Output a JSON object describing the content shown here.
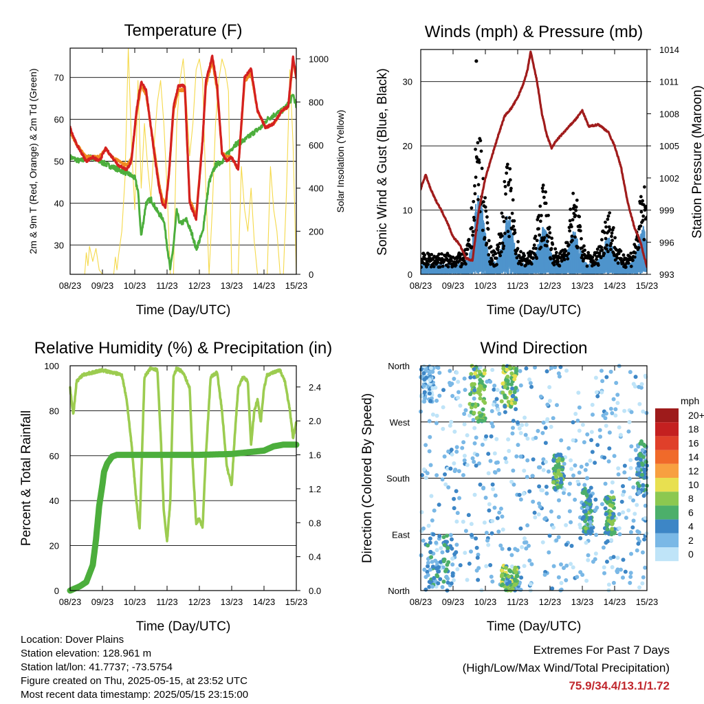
{
  "info": {
    "location": "Location: Dover Plains",
    "elevation": "Station elevation: 128.961 m",
    "latlon": "Station lat/lon: 41.7737; -73.5754",
    "created": "Figure created on Thu, 2025-05-15, at 23:52 UTC",
    "recent": "Most recent data timestamp: 2025/05/15 23:15:00"
  },
  "extremes": {
    "title": "Extremes For Past 7 Days",
    "subtitle": "(High/Low/Max Wind/Total Precipitation)",
    "values": "75.9/34.4/13.1/1.72"
  },
  "colors": {
    "temp2m": "#d42020",
    "temp9m": "#f08a20",
    "dewpoint": "#4cae3c",
    "insolation": "#f5d94a",
    "wind": "#4f94cc",
    "gust": "#000000",
    "pressure": "#a01c1c",
    "rh": "#9ccc50",
    "precip": "#4cae3c"
  },
  "chart_data": [
    {
      "id": "temperature",
      "type": "line",
      "title": "Temperature (F)",
      "xlabel": "Time (Day/UTC)",
      "ylabel": "2m & 9m T (Red, Orange) & 2m Td (Green)",
      "y2label": "Solar Insolation (Yellow)",
      "x_ticks": [
        "08/23",
        "09/23",
        "10/23",
        "11/23",
        "12/23",
        "13/23",
        "14/23",
        "15/23"
      ],
      "y_ticks": [
        30,
        40,
        50,
        60,
        70
      ],
      "y2_ticks": [
        0,
        200,
        400,
        600,
        800,
        1000
      ],
      "xlim": [
        0,
        7
      ],
      "ylim": [
        23,
        77
      ],
      "y2lim": [
        0,
        1050
      ],
      "grid": true,
      "series": [
        {
          "key": "temp2m",
          "x": [
            0,
            0.2,
            0.5,
            0.7,
            0.9,
            1.1,
            1.3,
            1.5,
            1.75,
            1.9,
            2.05,
            2.2,
            2.35,
            2.6,
            2.75,
            2.85,
            2.95,
            3.05,
            3.2,
            3.35,
            3.55,
            3.7,
            3.9,
            4.1,
            4.2,
            4.4,
            4.55,
            4.7,
            4.85,
            5.0,
            5.2,
            5.4,
            5.6,
            5.8,
            6.05,
            6.3,
            6.55,
            6.75,
            6.9,
            7.0
          ],
          "y": [
            58,
            54,
            50,
            51,
            50,
            53,
            51,
            49,
            48,
            50,
            62,
            69,
            67,
            52,
            44,
            40,
            39,
            46,
            63,
            68,
            68,
            40,
            36,
            55,
            69,
            75,
            68,
            52,
            50,
            51,
            48,
            70,
            72,
            62,
            58,
            59,
            62,
            63,
            75,
            70
          ]
        },
        {
          "key": "temp9m",
          "x": [
            0,
            0.2,
            0.5,
            0.7,
            0.9,
            1.1,
            1.3,
            1.5,
            1.75,
            1.9,
            2.05,
            2.2,
            2.35,
            2.6,
            2.75,
            2.85,
            2.95,
            3.05,
            3.2,
            3.35,
            3.55,
            3.7,
            3.9,
            4.1,
            4.2,
            4.4,
            4.55,
            4.7,
            4.85,
            5.0,
            5.2,
            5.4,
            5.6,
            5.8,
            6.05,
            6.3,
            6.55,
            6.75,
            6.9,
            7.0
          ],
          "y": [
            57,
            54,
            51,
            51,
            51,
            53,
            51,
            50,
            49,
            51,
            61,
            68,
            66,
            53,
            45,
            41,
            40,
            46,
            62,
            67,
            67,
            41,
            37,
            55,
            68,
            74,
            67,
            52,
            51,
            51,
            48,
            69,
            71,
            62,
            58,
            59,
            62,
            63,
            74,
            70
          ]
        },
        {
          "key": "dewpoint",
          "x": [
            0,
            0.3,
            0.6,
            0.9,
            1.2,
            1.5,
            1.8,
            2.0,
            2.1,
            2.2,
            2.35,
            2.5,
            2.7,
            2.9,
            3.0,
            3.1,
            3.2,
            3.3,
            3.4,
            3.6,
            3.8,
            3.9,
            4.1,
            4.3,
            4.5,
            4.7,
            4.9,
            5.1,
            5.4,
            5.7,
            5.9,
            6.1,
            6.3,
            6.55,
            6.8,
            6.9,
            7.0
          ],
          "y": [
            51,
            50,
            51,
            50,
            49,
            48,
            47,
            46,
            43,
            32,
            40,
            41,
            38,
            36,
            30,
            24,
            30,
            38,
            35,
            36,
            32,
            29,
            33,
            45,
            49,
            50,
            52,
            54,
            55,
            57,
            58,
            60,
            61,
            62,
            64,
            66,
            63
          ]
        },
        {
          "key": "insolation",
          "x": [
            0,
            0.3,
            0.45,
            0.5,
            0.55,
            0.6,
            0.7,
            0.8,
            0.9,
            1.0,
            1.1,
            1.25,
            1.35,
            1.4,
            1.45,
            1.5,
            1.6,
            1.7,
            1.8,
            1.9,
            2.0,
            2.1,
            2.2,
            2.3,
            2.4,
            2.5,
            2.6,
            2.7,
            2.8,
            2.9,
            3.0,
            3.1,
            3.2,
            3.3,
            3.4,
            3.5,
            3.6,
            3.7,
            3.8,
            3.9,
            4.0,
            4.1,
            4.2,
            4.3,
            4.4,
            4.5,
            4.6,
            4.7,
            4.8,
            4.9,
            5.0,
            5.1,
            5.2,
            5.3,
            5.4,
            5.5,
            5.6,
            5.7,
            5.8,
            5.9,
            6.0,
            6.1,
            6.2,
            6.3,
            6.4,
            6.5,
            6.6,
            6.7,
            6.8,
            6.9,
            7.0
          ],
          "y": [
            0,
            0,
            0,
            100,
            40,
            130,
            60,
            120,
            20,
            0,
            0,
            0,
            0,
            80,
            20,
            90,
            200,
            450,
            1050,
            600,
            300,
            900,
            400,
            700,
            500,
            350,
            600,
            800,
            900,
            700,
            400,
            0,
            0,
            700,
            900,
            1000,
            800,
            550,
            700,
            950,
            1000,
            900,
            400,
            0,
            300,
            700,
            900,
            1000,
            950,
            850,
            0,
            0,
            0,
            500,
            300,
            200,
            400,
            150,
            0,
            0,
            0,
            0,
            500,
            300,
            200,
            0,
            0,
            400,
            950,
            600,
            0
          ]
        }
      ]
    },
    {
      "id": "winds",
      "type": "scatter",
      "title": "Winds (mph) & Pressure (mb)",
      "xlabel": "Time (Day/UTC)",
      "ylabel": "Sonic Wind & Gust (Blue, Black)",
      "y2label": "Station Pressure (Maroon)",
      "x_ticks": [
        "08/23",
        "09/23",
        "10/23",
        "11/23",
        "12/23",
        "13/23",
        "14/23",
        "15/23"
      ],
      "y_ticks": [
        0,
        10,
        20,
        30
      ],
      "y2_ticks": [
        993,
        996,
        999,
        1002,
        1005,
        1008,
        1011,
        1014
      ],
      "xlim": [
        0,
        7
      ],
      "ylim": [
        0,
        35
      ],
      "y2lim": [
        993,
        1014
      ],
      "grid": true,
      "max_gust": 33.2,
      "daily_gust_peaks": [
        {
          "x": 1.8,
          "y": 24
        },
        {
          "x": 2.7,
          "y": 18
        },
        {
          "x": 3.8,
          "y": 15
        },
        {
          "x": 4.75,
          "y": 14
        },
        {
          "x": 5.8,
          "y": 12
        },
        {
          "x": 6.9,
          "y": 15
        }
      ],
      "series": [
        {
          "key": "pressure",
          "x": [
            0,
            0.15,
            0.3,
            0.45,
            0.6,
            0.8,
            1.0,
            1.2,
            1.4,
            1.6,
            1.8,
            2.0,
            2.2,
            2.4,
            2.6,
            2.8,
            3.0,
            3.2,
            3.3,
            3.4,
            3.6,
            3.75,
            3.9,
            4.05,
            4.2,
            4.5,
            4.8,
            5.0,
            5.2,
            5.5,
            5.8,
            6.0,
            6.2,
            6.4,
            6.6,
            6.8,
            7.0
          ],
          "y": [
            1001,
            1002.3,
            1001,
            1000,
            999.2,
            998,
            996.5,
            995.8,
            994.5,
            994.3,
            999,
            1002,
            1004,
            1006,
            1007.8,
            1008.5,
            1009.5,
            1011,
            1012,
            1013.8,
            1011,
            1008,
            1006,
            1004.8,
            1005.5,
            1006.5,
            1007.5,
            1008.3,
            1006.8,
            1007,
            1006.3,
            1005,
            1003,
            999.8,
            997.5,
            996,
            993.7
          ]
        }
      ]
    },
    {
      "id": "humidity",
      "type": "line",
      "title": "Relative Humidity (%) & Precipitation (in)",
      "xlabel": "Time (Day/UTC)",
      "ylabel": "Percent & Total Rainfall",
      "x_ticks": [
        "08/23",
        "09/23",
        "10/23",
        "11/23",
        "12/23",
        "13/23",
        "14/23",
        "15/23"
      ],
      "y_ticks": [
        0,
        20,
        40,
        60,
        80,
        100
      ],
      "y2_ticks": [
        "0.0",
        "0.4",
        "0.8",
        "1.2",
        "1.6",
        "2.0",
        "2.4"
      ],
      "xlim": [
        0,
        7
      ],
      "ylim": [
        0,
        100
      ],
      "y2lim": [
        0,
        2.65
      ],
      "grid": true,
      "series": [
        {
          "key": "rh",
          "x": [
            0,
            0.1,
            0.2,
            0.4,
            0.7,
            1.0,
            1.3,
            1.6,
            1.75,
            1.9,
            2.05,
            2.15,
            2.3,
            2.5,
            2.7,
            2.8,
            2.9,
            3.0,
            3.1,
            3.2,
            3.3,
            3.5,
            3.7,
            3.8,
            3.9,
            4.0,
            4.1,
            4.2,
            4.35,
            4.55,
            4.7,
            4.85,
            5.0,
            5.1,
            5.2,
            5.35,
            5.5,
            5.6,
            5.7,
            5.8,
            5.9,
            6.0,
            6.1,
            6.3,
            6.5,
            6.65,
            6.8,
            6.9,
            7.0
          ],
          "y": [
            90,
            78,
            93,
            96,
            97,
            98,
            97,
            96,
            85,
            65,
            40,
            27,
            95,
            99,
            98,
            70,
            35,
            22,
            40,
            95,
            99,
            97,
            90,
            55,
            30,
            32,
            28,
            60,
            95,
            97,
            80,
            55,
            47,
            70,
            90,
            95,
            93,
            65,
            80,
            85,
            75,
            90,
            96,
            97,
            98,
            93,
            80,
            68,
            75
          ]
        },
        {
          "key": "precip",
          "x": [
            0,
            0.3,
            0.5,
            0.7,
            0.8,
            0.9,
            1.0,
            1.05,
            1.15,
            1.3,
            1.45,
            1.6,
            2.0,
            3.0,
            4.0,
            5.0,
            5.5,
            6.0,
            6.3,
            6.6,
            7.0
          ],
          "y": [
            0,
            0.05,
            0.1,
            0.3,
            0.6,
            1.0,
            1.25,
            1.4,
            1.5,
            1.58,
            1.6,
            1.6,
            1.6,
            1.6,
            1.6,
            1.61,
            1.63,
            1.65,
            1.7,
            1.72,
            1.72
          ]
        }
      ]
    },
    {
      "id": "direction",
      "type": "scatter",
      "title": "Wind Direction",
      "xlabel": "Time (Day/UTC)",
      "ylabel": "Direction (Colored By Speed)",
      "x_ticks": [
        "08/23",
        "09/23",
        "10/23",
        "11/23",
        "12/23",
        "13/23",
        "14/23",
        "15/23"
      ],
      "y_ticks": [
        "North",
        "East",
        "South",
        "West",
        "North"
      ],
      "xlim": [
        0,
        7
      ],
      "ylim": [
        0,
        360
      ],
      "grid": true,
      "legend_title": "mph",
      "legend_labels": [
        "20+",
        "18",
        "16",
        "14",
        "12",
        "10",
        "8",
        "6",
        "4",
        "2",
        "0"
      ],
      "legend_colors": [
        "#9e1b1b",
        "#c42020",
        "#e0402a",
        "#f06a2a",
        "#f8a040",
        "#e8e050",
        "#8cc850",
        "#4caf6a",
        "#3d86c6",
        "#7ab8e6",
        "#bfe4f8"
      ],
      "clusters": [
        {
          "x": [
            0,
            0.4
          ],
          "dir": [
            300,
            360
          ],
          "speed": 2
        },
        {
          "x": [
            0.1,
            1.0
          ],
          "dir": [
            0,
            90
          ],
          "speed": 4
        },
        {
          "x": [
            1.5,
            2.0
          ],
          "dir": [
            270,
            360
          ],
          "speed": 7
        },
        {
          "x": [
            2.5,
            3.0
          ],
          "dir": [
            290,
            360
          ],
          "speed": 7
        },
        {
          "x": [
            2.5,
            3.0
          ],
          "dir": [
            0,
            40
          ],
          "speed": 7
        },
        {
          "x": [
            4.1,
            4.4
          ],
          "dir": [
            160,
            220
          ],
          "speed": 6
        },
        {
          "x": [
            5.0,
            5.3
          ],
          "dir": [
            90,
            170
          ],
          "speed": 5
        },
        {
          "x": [
            5.7,
            6.0
          ],
          "dir": [
            90,
            150
          ],
          "speed": 6
        },
        {
          "x": [
            6.7,
            7.0
          ],
          "dir": [
            150,
            240
          ],
          "speed": 4
        }
      ]
    }
  ]
}
